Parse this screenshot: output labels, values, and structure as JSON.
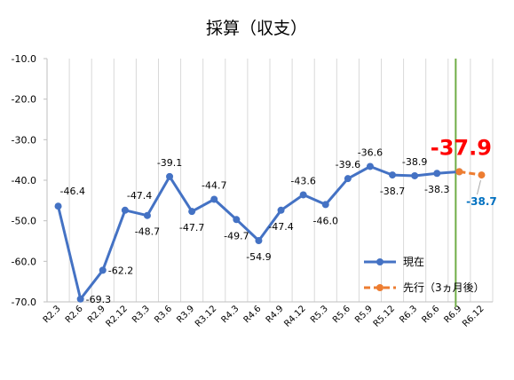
{
  "chart_data": {
    "type": "line",
    "title": "採算（収支）",
    "categories": [
      "R2.3",
      "R2.6",
      "R2.9",
      "R2.12",
      "R3.3",
      "R3.6",
      "R3.9",
      "R3.12",
      "R4.3",
      "R4.6",
      "R4.9",
      "R4.12",
      "R5.3",
      "R5.6",
      "R5.9",
      "R5.12",
      "R6.3",
      "R6.6",
      "R6.9",
      "R6.12"
    ],
    "ylim": [
      -70,
      -10
    ],
    "y_ticks": [
      "-10.0",
      "-20.0",
      "-30.0",
      "-40.0",
      "-50.0",
      "-60.0",
      "-70.0"
    ],
    "grid": "vertical",
    "legend_position": "right",
    "series": [
      {
        "name": "現在",
        "color": "#4472C4",
        "values": [
          -46.4,
          -69.3,
          -62.2,
          -47.4,
          -48.7,
          -39.1,
          -47.7,
          -44.7,
          -49.7,
          -54.9,
          -47.4,
          -43.6,
          -46.0,
          -39.6,
          -36.6,
          -38.7,
          -38.9,
          -38.3,
          -37.9,
          null
        ],
        "labels": [
          "-46.4",
          "-69.3",
          "-62.2",
          "-47.4",
          "-48.7",
          "-39.1",
          "-47.7",
          "-44.7",
          "-49.7",
          "-54.9",
          "-47.4",
          "-43.6",
          "-46.0",
          "-39.6",
          "-36.6",
          "-38.7",
          "-38.9",
          "-38.3",
          "",
          ""
        ]
      },
      {
        "name": "先行（3ヵ月後）",
        "color": "#ED7D31",
        "dashed": true,
        "values": [
          null,
          null,
          null,
          null,
          null,
          null,
          null,
          null,
          null,
          null,
          null,
          null,
          null,
          null,
          null,
          null,
          null,
          null,
          -37.9,
          -38.7
        ],
        "labels": [
          "",
          "",
          "",
          "",
          "",
          "",
          "",
          "",
          "",
          "",
          "",
          "",
          "",
          "",
          "",
          "",
          "",
          "",
          "",
          "-38.7"
        ]
      }
    ],
    "highlight_label": "-37.9",
    "highlight_color": "#FF0000",
    "forecast_label_color": "#0070C0",
    "marker_line_color": "#70AD47",
    "marker_line_category": "R6.9"
  }
}
